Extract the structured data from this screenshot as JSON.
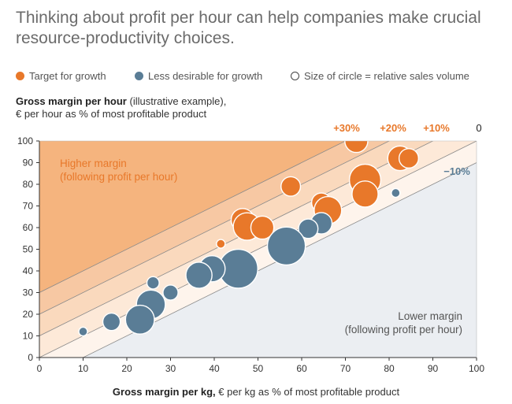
{
  "headline": "Thinking about profit per hour can help companies make crucial resource-productivity choices.",
  "legend": {
    "growth": "Target for growth",
    "less": "Less desirable for growth",
    "size": "Size of circle = relative sales volume"
  },
  "y_title": {
    "bold": "Gross margin per hour",
    "rest": " (illustrative example),",
    "line2": "€ per hour as % of most profitable product"
  },
  "x_title": {
    "bold": "Gross margin per kg,",
    "rest": " € per kg as % of most profitable product"
  },
  "colors": {
    "growth": "#e8782a",
    "less": "#5a7d96",
    "higher_zone": "#f5b47e",
    "lower_zone": "#ebeef2",
    "band_30": "#f7c8a3",
    "band_20": "#fad9bd",
    "band_10": "#fde9d8",
    "band_0": "#fef4ec"
  },
  "chart_data": {
    "type": "scatter",
    "xlim": [
      0,
      100
    ],
    "ylim": [
      0,
      100
    ],
    "x_ticks": [
      0,
      10,
      20,
      30,
      40,
      50,
      60,
      70,
      80,
      90,
      100
    ],
    "y_ticks": [
      0,
      10,
      20,
      30,
      40,
      50,
      60,
      70,
      80,
      90,
      100
    ],
    "grid": false,
    "legend_position": "top",
    "reference_lines": [
      {
        "label": "+30%",
        "y_at_x0": 30,
        "y_at_x100": 130
      },
      {
        "label": "+20%",
        "y_at_x0": 20,
        "y_at_x100": 120
      },
      {
        "label": "+10%",
        "y_at_x0": 10,
        "y_at_x100": 110
      },
      {
        "label": "0",
        "y_at_x0": 0,
        "y_at_x100": 100
      },
      {
        "label": "−10%",
        "y_at_x0": -10,
        "y_at_x100": 90
      }
    ],
    "zones": {
      "higher_title": "Higher margin",
      "higher_sub": "(following profit per hour)",
      "lower_title": "Lower margin",
      "lower_sub": "(following profit per hour)"
    },
    "series": [
      {
        "name": "Target for growth",
        "points": [
          {
            "x": 72.5,
            "y": 100,
            "size": 3.5
          },
          {
            "x": 82.5,
            "y": 92,
            "size": 4
          },
          {
            "x": 84.5,
            "y": 92,
            "size": 2.5
          },
          {
            "x": 74.5,
            "y": 82,
            "size": 6.5
          },
          {
            "x": 74.5,
            "y": 75.5,
            "size": 4.5
          },
          {
            "x": 57.5,
            "y": 79,
            "size": 2.5
          },
          {
            "x": 64.5,
            "y": 71.5,
            "size": 2.5
          },
          {
            "x": 66,
            "y": 68,
            "size": 5
          },
          {
            "x": 46.5,
            "y": 63.5,
            "size": 3.5
          },
          {
            "x": 47.5,
            "y": 60.5,
            "size": 5
          },
          {
            "x": 51,
            "y": 60,
            "size": 3.5
          },
          {
            "x": 41.5,
            "y": 52.5,
            "size": 0.5
          }
        ]
      },
      {
        "name": "Less desirable for growth",
        "points": [
          {
            "x": 81.5,
            "y": 76,
            "size": 0.5
          },
          {
            "x": 64.5,
            "y": 62,
            "size": 3
          },
          {
            "x": 61.5,
            "y": 59.5,
            "size": 2.5
          },
          {
            "x": 56.5,
            "y": 51.5,
            "size": 9.5
          },
          {
            "x": 45.5,
            "y": 41,
            "size": 10
          },
          {
            "x": 39.5,
            "y": 41,
            "size": 4.5
          },
          {
            "x": 36.5,
            "y": 38,
            "size": 4.5
          },
          {
            "x": 26,
            "y": 34.5,
            "size": 1
          },
          {
            "x": 30,
            "y": 30,
            "size": 1.5
          },
          {
            "x": 25.5,
            "y": 24.5,
            "size": 5.5
          },
          {
            "x": 23,
            "y": 17.5,
            "size": 5.5
          },
          {
            "x": 16.5,
            "y": 16.5,
            "size": 2
          },
          {
            "x": 10,
            "y": 12,
            "size": 0.5
          }
        ]
      }
    ]
  }
}
